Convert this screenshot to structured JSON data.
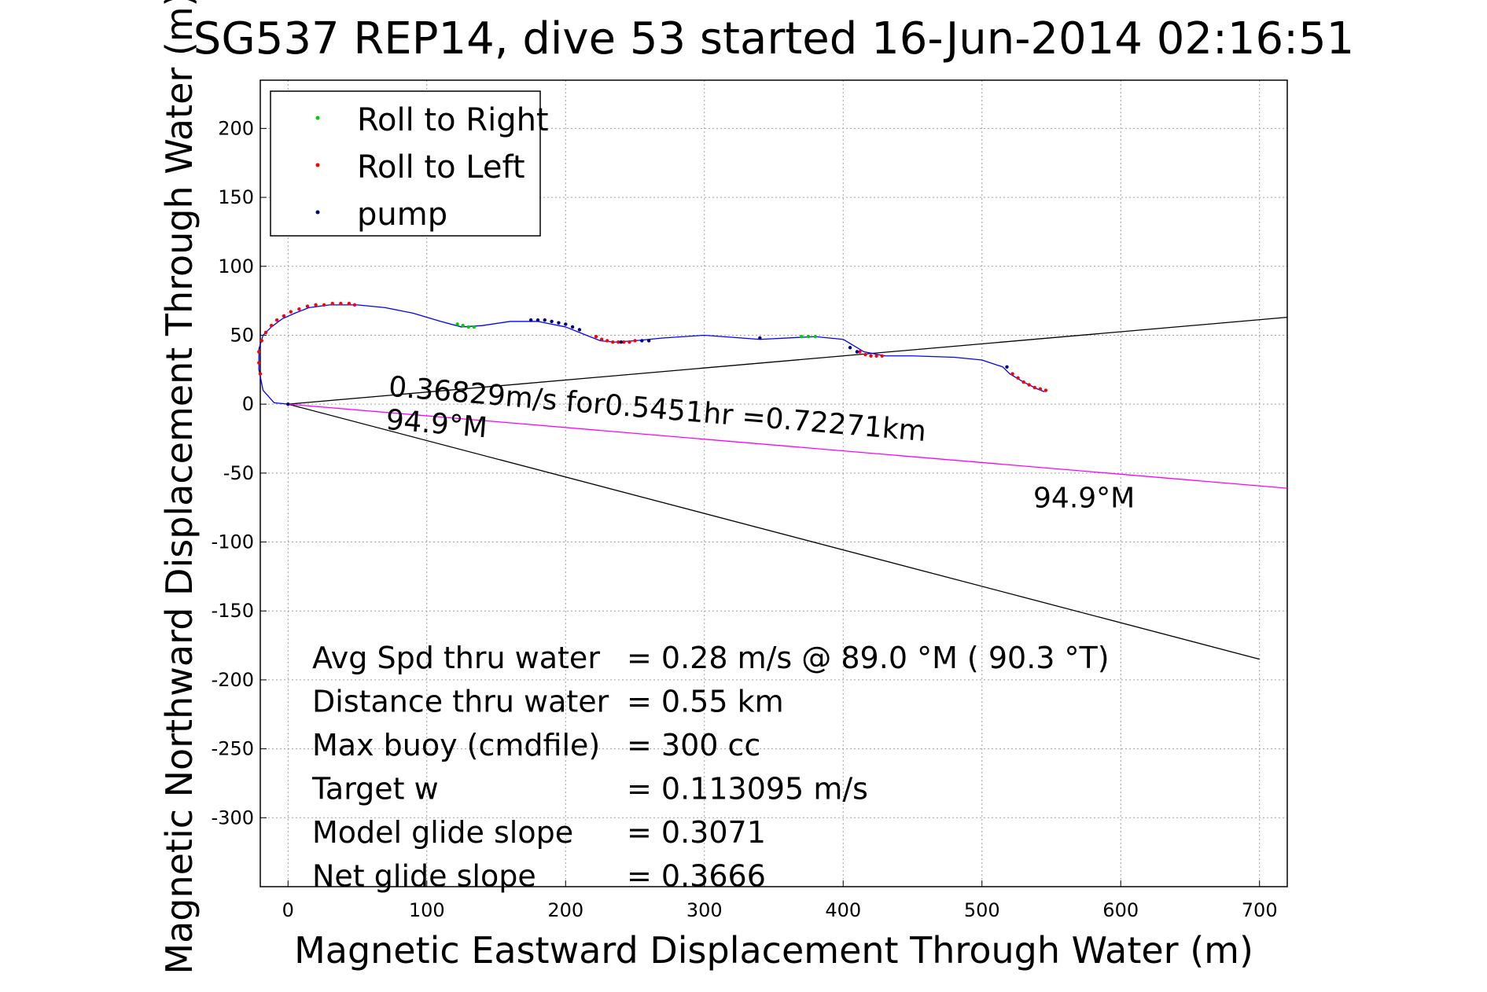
{
  "chart_data": {
    "type": "scatter",
    "title": "SG537 REP14, dive 53 started 16-Jun-2014 02:16:51",
    "xlabel": "Magnetic Eastward Displacement Through Water (m)",
    "ylabel": "Magnetic Northward Displacement Through Water (m)",
    "xlim": [
      -20,
      720
    ],
    "ylim": [
      -350,
      235
    ],
    "xticks": [
      0,
      100,
      200,
      300,
      400,
      500,
      600,
      700
    ],
    "yticks": [
      200,
      150,
      100,
      50,
      0,
      -50,
      -100,
      -150,
      -200,
      -250,
      -300
    ],
    "grid": true,
    "legend": {
      "placement": "top-left",
      "entries": [
        {
          "label": "Roll to Right",
          "color": "#00cc00"
        },
        {
          "label": "Roll to Left",
          "color": "#ff0000"
        },
        {
          "label": "pump",
          "color": "#000080"
        }
      ]
    },
    "track": {
      "name": "track",
      "color": "#0000ff",
      "x": [
        0,
        -10,
        -18,
        -21,
        -21,
        -18,
        -12,
        -4,
        5,
        15,
        30,
        50,
        70,
        90,
        110,
        125,
        140,
        160,
        180,
        200,
        215,
        225,
        235,
        250,
        270,
        300,
        340,
        380,
        400,
        415,
        430,
        450,
        480,
        500,
        515,
        520,
        530,
        540,
        545
      ],
      "y": [
        0,
        1,
        10,
        25,
        40,
        50,
        56,
        62,
        66,
        70,
        72,
        72,
        70,
        66,
        60,
        56,
        57,
        60,
        60,
        56,
        50,
        46,
        45,
        46,
        48,
        50,
        47,
        49,
        47,
        38,
        35,
        35,
        34,
        32,
        27,
        22,
        16,
        11,
        9
      ]
    },
    "roll_right": {
      "name": "Roll to Right",
      "color": "#00cc00",
      "x": [
        122,
        126,
        130,
        134,
        370,
        375,
        380
      ],
      "y": [
        58,
        57,
        56,
        56,
        49,
        49,
        49
      ]
    },
    "roll_left": {
      "name": "Roll to Left",
      "color": "#ff0000",
      "x": [
        -20,
        -21,
        -21,
        -19,
        -16,
        -12,
        -8,
        -3,
        2,
        8,
        14,
        20,
        26,
        32,
        38,
        44,
        48,
        222,
        226,
        230,
        234,
        238,
        242,
        246,
        250,
        412,
        416,
        420,
        424,
        428,
        522,
        526,
        530,
        534,
        538,
        542,
        546
      ],
      "y": [
        22,
        30,
        38,
        46,
        52,
        57,
        61,
        64,
        67,
        69,
        71,
        72,
        72,
        73,
        73,
        73,
        72,
        49,
        47,
        46,
        45,
        45,
        45,
        45,
        46,
        38,
        36,
        35,
        35,
        35,
        22,
        19,
        16,
        14,
        12,
        11,
        10
      ]
    },
    "pump": {
      "name": "pump",
      "color": "#000080",
      "x": [
        0,
        175,
        180,
        185,
        190,
        195,
        200,
        205,
        210,
        240,
        255,
        260,
        340,
        405,
        410,
        518
      ],
      "y": [
        0,
        61,
        61,
        61,
        60,
        59,
        58,
        56,
        54,
        45,
        46,
        46,
        48,
        41,
        38,
        27
      ]
    },
    "reference_lines": [
      {
        "color": "#000000",
        "x": [
          0,
          720
        ],
        "y": [
          0,
          63
        ]
      },
      {
        "color": "#000000",
        "x": [
          0,
          700
        ],
        "y": [
          0,
          -185
        ]
      },
      {
        "color": "#ff00ff",
        "x": [
          0,
          720
        ],
        "y": [
          0,
          -61
        ]
      }
    ],
    "annotations": [
      {
        "text": "0.36829m/s for0.5451hr =0.72271km",
        "x": 72,
        "y": 6,
        "rotation_deg": -4.8
      },
      {
        "text": "94.9°M",
        "x": 70,
        "y": -18,
        "rotation_deg": -4.8
      },
      {
        "text": "94.9°M",
        "x": 537,
        "y": -75,
        "rotation_deg": 0
      }
    ],
    "stats": [
      {
        "label": "Avg Spd thru water",
        "value": "=  0.28 m/s @  89.0 °M ( 90.3 °T)"
      },
      {
        "label": "Distance thru water",
        "value": "=  0.55 km"
      },
      {
        "label": "Max buoy (cmdfile)",
        "value": "= 300 cc"
      },
      {
        "label": "Target w",
        "value": "= 0.113095 m/s"
      },
      {
        "label": "Model glide slope",
        "value": "= 0.3071"
      },
      {
        "label": "Net glide slope",
        "value": "= 0.3666"
      }
    ]
  }
}
